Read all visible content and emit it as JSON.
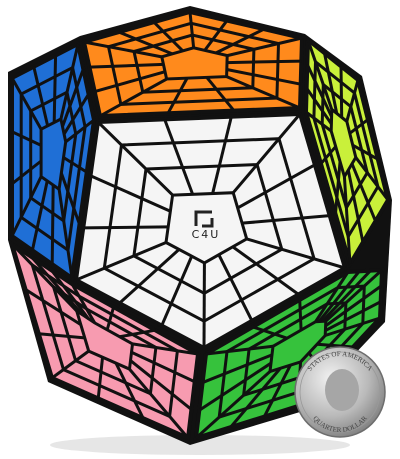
{
  "logo": {
    "text": "C4U"
  },
  "coin": {
    "top_text": "STATES OF AMERICA",
    "bottom_text": "QUARTER DOLLAR"
  }
}
